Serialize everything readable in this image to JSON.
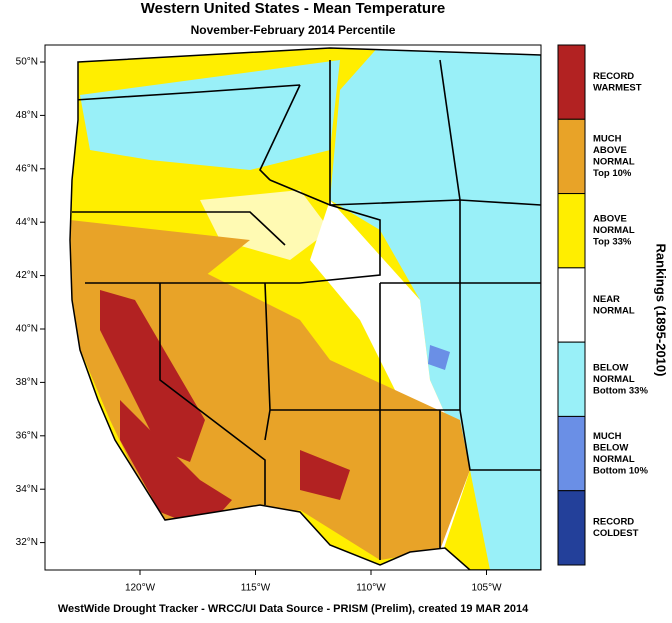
{
  "header": {
    "title": "Western United States - Mean Temperature",
    "subtitle": "November-February 2014 Percentile"
  },
  "map": {
    "lat_ticks": [
      "50°N",
      "48°N",
      "46°N",
      "44°N",
      "42°N",
      "40°N",
      "38°N",
      "36°N",
      "34°N",
      "32°N"
    ],
    "lon_ticks": [
      "120°W",
      "115°W",
      "110°W",
      "105°W"
    ]
  },
  "legend": {
    "title": "Rankings (1895-2010)",
    "items": [
      {
        "lines": [
          "RECORD",
          "WARMEST"
        ],
        "color": "#b22222"
      },
      {
        "lines": [
          "MUCH",
          "ABOVE",
          "NORMAL",
          "Top 10%"
        ],
        "color": "#e8a328"
      },
      {
        "lines": [
          "ABOVE",
          "NORMAL",
          "Top 33%"
        ],
        "color": "#ffee00"
      },
      {
        "lines": [
          "NEAR",
          "NORMAL"
        ],
        "color": "#ffffff"
      },
      {
        "lines": [
          "BELOW",
          "NORMAL",
          "Bottom 33%"
        ],
        "color": "#99f0f8"
      },
      {
        "lines": [
          "MUCH",
          "BELOW",
          "NORMAL",
          "Bottom 10%"
        ],
        "color": "#6a8fe6"
      },
      {
        "lines": [
          "RECORD",
          "COLDEST"
        ],
        "color": "#23409a"
      }
    ]
  },
  "footer": "WestWide Drought Tracker - WRCC/UI  Data Source - PRISM (Prelim), created 19 MAR 2014"
}
